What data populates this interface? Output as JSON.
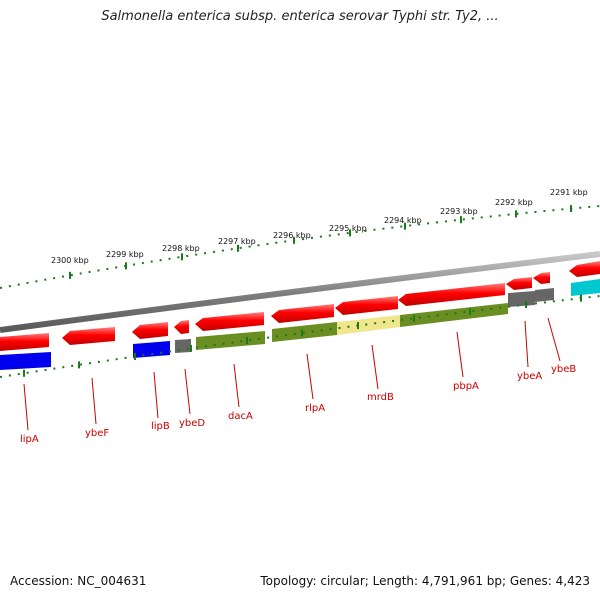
{
  "title": "Salmonella enterica subsp. enterica serovar Typhi str. Ty2, ...",
  "footer": {
    "accession": "Accession: NC_004631",
    "topology": "Topology: circular; Length: 4,791,961 bp; Genes: 4,423"
  },
  "colors": {
    "forward_gene": "#ff0000",
    "reverse_gene_blue": "#0000ee",
    "reverse_gene_olive": "#6b8e23",
    "reverse_gene_grey": "#666666",
    "reverse_gene_cyan": "#00c8d0",
    "highlight_yellow": "#f0e68c",
    "backbone": "#808080",
    "ticks": "#1a7a1a",
    "labels": "#cc0000"
  },
  "kbp_labels": [
    "2300 kbp",
    "2299 kbp",
    "2298 kbp",
    "2297 kbp",
    "2296 kbp",
    "2295 kbp",
    "2294 kbp",
    "2293 kbp",
    "2292 kbp",
    "2291 kbp"
  ],
  "genes": [
    "lipA",
    "ybeF",
    "lipB",
    "ybeD",
    "dacA",
    "rlpA",
    "mrdB",
    "pbpA",
    "ybeA",
    "ybeB"
  ]
}
